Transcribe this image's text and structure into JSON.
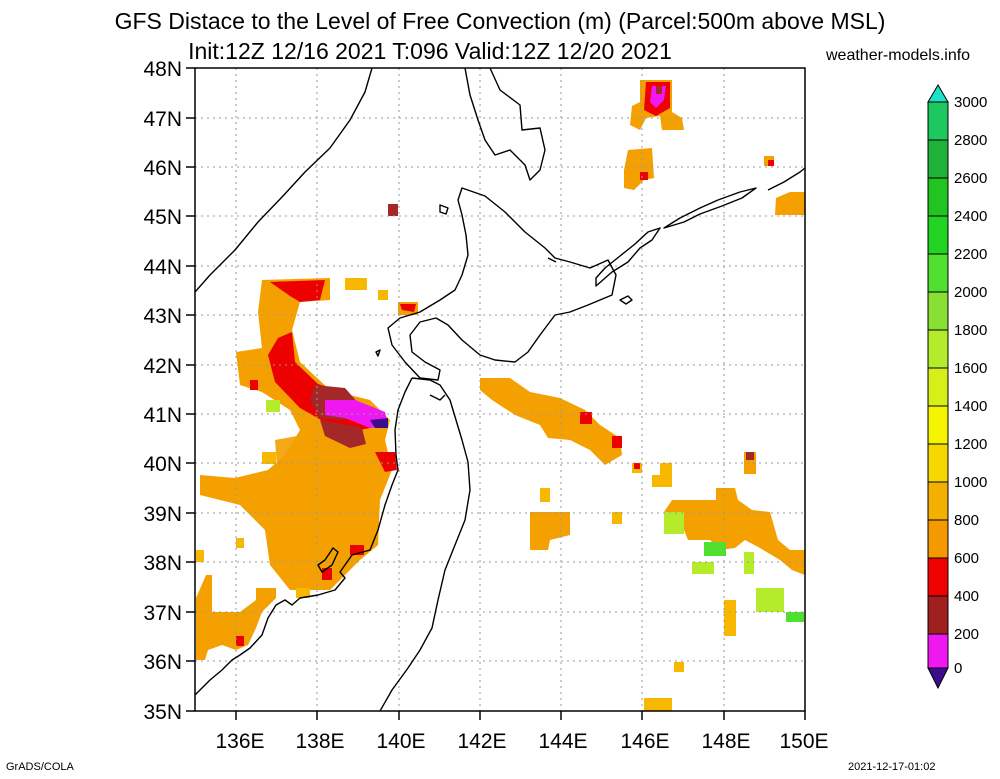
{
  "title_line1": "GFS Distace to the Level of Free Convection (m) (Parcel:500m above MSL)",
  "title_line2": "Init:12Z 12/16 2021 T:096 Valid:12Z 12/20 2021",
  "site": "weather-models.info",
  "footer_left": "GrADS/COLA",
  "footer_right": "2021-12-17-01:02",
  "map": {
    "lon_range": [
      135,
      150
    ],
    "lat_range": [
      35,
      48
    ],
    "lat_labels": [
      "48N",
      "47N",
      "46N",
      "45N",
      "44N",
      "43N",
      "42N",
      "41N",
      "40N",
      "39N",
      "38N",
      "37N",
      "36N",
      "35N"
    ],
    "lon_labels": [
      "136E",
      "138E",
      "140E",
      "142E",
      "144E",
      "146E",
      "148E",
      "150E"
    ]
  },
  "colorbar": {
    "labels": [
      "3000",
      "2800",
      "2600",
      "2400",
      "2200",
      "2000",
      "1800",
      "1600",
      "1400",
      "1200",
      "1000",
      "800",
      "600",
      "400",
      "200",
      "0"
    ],
    "colors": [
      "#1fe0c8",
      "#1ec860",
      "#1fb23a",
      "#21c421",
      "#22d422",
      "#4fe030",
      "#88e034",
      "#b4ec2c",
      "#d4f018",
      "#f4f400",
      "#f4d800",
      "#f4b000",
      "#f49a00",
      "#f00000",
      "#a02020",
      "#f018f0",
      "#3c0c8c"
    ]
  },
  "fill_colors": {
    "light_orange": "#f9b800",
    "orange": "#f4a000",
    "red": "#ec0000",
    "brown": "#a42828",
    "magenta": "#f018f0",
    "purple": "#3c0c8c",
    "lime": "#b4ec2c",
    "green": "#4fe030"
  }
}
